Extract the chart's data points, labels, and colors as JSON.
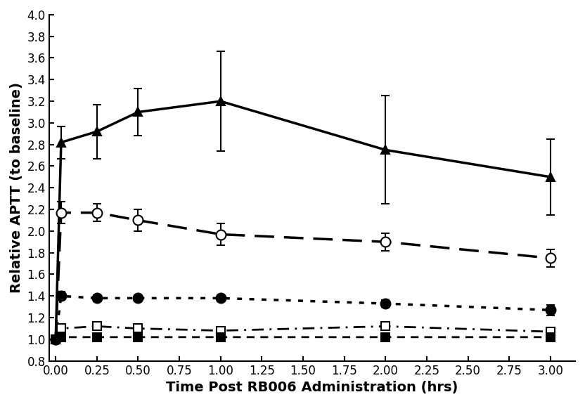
{
  "xlabel": "Time Post RB006 Administration (hrs)",
  "ylabel": "Relative APTT (to baseline)",
  "xlim": [
    -0.04,
    3.15
  ],
  "ylim": [
    0.8,
    4.0
  ],
  "yticks": [
    0.8,
    1.0,
    1.2,
    1.4,
    1.6,
    1.8,
    2.0,
    2.2,
    2.4,
    2.6,
    2.8,
    3.0,
    3.2,
    3.4,
    3.6,
    3.8,
    4.0
  ],
  "xticks": [
    0.0,
    0.25,
    0.5,
    0.75,
    1.0,
    1.25,
    1.5,
    1.75,
    2.0,
    2.25,
    2.5,
    2.75,
    3.0
  ],
  "series": [
    {
      "name": "solid_triangle",
      "x": [
        0.0,
        0.033,
        0.25,
        0.5,
        1.0,
        2.0,
        3.0
      ],
      "y": [
        1.0,
        2.82,
        2.92,
        3.1,
        3.2,
        2.75,
        2.5
      ],
      "yerr": [
        0.0,
        0.15,
        0.25,
        0.22,
        0.46,
        0.5,
        0.35
      ],
      "marker": "^",
      "marker_filled": true,
      "linestyle": "-",
      "linewidth": 2.5,
      "markersize": 9,
      "color": "black",
      "dashes": []
    },
    {
      "name": "open_circle",
      "x": [
        0.0,
        0.033,
        0.25,
        0.5,
        1.0,
        2.0,
        3.0
      ],
      "y": [
        1.0,
        2.17,
        2.17,
        2.1,
        1.97,
        1.9,
        1.75
      ],
      "yerr": [
        0.0,
        0.1,
        0.08,
        0.1,
        0.1,
        0.08,
        0.08
      ],
      "marker": "o",
      "marker_filled": false,
      "linestyle": "--",
      "linewidth": 2.5,
      "markersize": 10,
      "color": "black",
      "dashes": [
        8,
        4
      ]
    },
    {
      "name": "filled_circle",
      "x": [
        0.0,
        0.033,
        0.25,
        0.5,
        1.0,
        2.0,
        3.0
      ],
      "y": [
        1.0,
        1.4,
        1.38,
        1.38,
        1.38,
        1.33,
        1.27
      ],
      "yerr": [
        0.0,
        0.04,
        0.03,
        0.03,
        0.03,
        0.03,
        0.05
      ],
      "marker": "o",
      "marker_filled": true,
      "linestyle": ":",
      "linewidth": 2.5,
      "markersize": 10,
      "color": "black",
      "dashes": [
        2,
        3
      ]
    },
    {
      "name": "open_square",
      "x": [
        0.0,
        0.033,
        0.25,
        0.5,
        1.0,
        2.0,
        3.0
      ],
      "y": [
        1.0,
        1.1,
        1.12,
        1.1,
        1.08,
        1.12,
        1.07
      ],
      "yerr": [
        0.0,
        0.02,
        0.02,
        0.02,
        0.02,
        0.03,
        0.02
      ],
      "marker": "s",
      "marker_filled": false,
      "linestyle": "-.",
      "linewidth": 2.0,
      "markersize": 8,
      "color": "black",
      "dashes": [
        6,
        3,
        1,
        3
      ]
    },
    {
      "name": "filled_square",
      "x": [
        0.0,
        0.033,
        0.25,
        0.5,
        1.0,
        2.0,
        3.0
      ],
      "y": [
        1.0,
        1.02,
        1.02,
        1.02,
        1.02,
        1.02,
        1.02
      ],
      "yerr": [
        0.0,
        0.01,
        0.01,
        0.01,
        0.01,
        0.01,
        0.01
      ],
      "marker": "s",
      "marker_filled": true,
      "linestyle": "--",
      "linewidth": 2.0,
      "markersize": 8,
      "color": "black",
      "dashes": [
        4,
        3
      ]
    }
  ]
}
